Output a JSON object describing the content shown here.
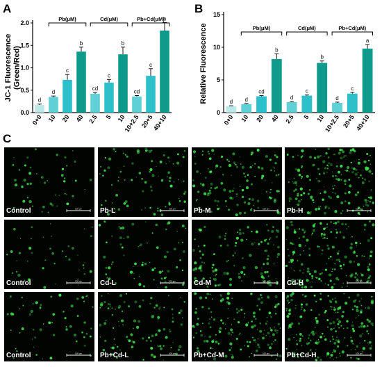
{
  "panels": {
    "a": "A",
    "b": "B",
    "c": "C"
  },
  "chart_data": [
    {
      "type": "bar",
      "panel": "A",
      "ylabel": "JC-1 Fluorescence (Green/Red)",
      "xlabel": "",
      "ylim": [
        0,
        2.0
      ],
      "yticks": [
        "0.0",
        "0.5",
        "1.0",
        "1.5",
        "2.0"
      ],
      "ytick_values": [
        0,
        0.5,
        1.0,
        1.5,
        2.0
      ],
      "categories": [
        "0+0",
        "10",
        "20",
        "40",
        "2.5",
        "5",
        "10",
        "10+2.5",
        "20+5",
        "40+10"
      ],
      "values": [
        0.17,
        0.35,
        0.73,
        1.36,
        0.42,
        0.67,
        1.3,
        0.36,
        0.82,
        1.83
      ],
      "errors": [
        0.02,
        0.02,
        0.12,
        0.1,
        0.03,
        0.07,
        0.16,
        0.02,
        0.16,
        0.18
      ],
      "significance": [
        "d",
        "d",
        "c",
        "b",
        "cd",
        "c",
        "b",
        "cd",
        "c",
        "a"
      ],
      "groups": [
        {
          "label": "Pb(μM)",
          "from": 1,
          "to": 3
        },
        {
          "label": "Cd(μM)",
          "from": 4,
          "to": 6
        },
        {
          "label": "Pb+Cd(μM)",
          "from": 7,
          "to": 9
        }
      ]
    },
    {
      "type": "bar",
      "panel": "B",
      "ylabel": "Relative Fluorescence",
      "xlabel": "",
      "ylim": [
        0,
        15
      ],
      "yticks": [
        "0",
        "5",
        "10",
        "15"
      ],
      "ytick_values": [
        0,
        5,
        10,
        15
      ],
      "categories": [
        "0+0",
        "10",
        "20",
        "40",
        "2.5",
        "5",
        "10",
        "10+2.5",
        "20+5",
        "40+10"
      ],
      "values": [
        1.0,
        1.3,
        2.5,
        8.2,
        1.6,
        2.6,
        7.6,
        1.5,
        2.9,
        9.8
      ],
      "errors": [
        0.05,
        0.1,
        0.1,
        0.8,
        0.1,
        0.1,
        0.3,
        0.1,
        0.2,
        0.6
      ],
      "significance": [
        "d",
        "d",
        "cd",
        "b",
        "d",
        "c",
        "b",
        "d",
        "c",
        "a"
      ],
      "groups": [
        {
          "label": "Pb(μM)",
          "from": 1,
          "to": 3
        },
        {
          "label": "Cd(μM)",
          "from": 4,
          "to": 6
        },
        {
          "label": "Pb+Cd(μM)",
          "from": 7,
          "to": 9
        }
      ]
    }
  ],
  "bar_colors": [
    "#bde8e8",
    "#5fd0d6",
    "#2dbfca",
    "#0f9a8c",
    "#5fd0d6",
    "#2dbfca",
    "#0f9a8c",
    "#5fd0d6",
    "#2dbfca",
    "#0f9a8c"
  ],
  "micrographs": {
    "rows": [
      {
        "labels": [
          "Control",
          "Pb-L",
          "Pb-M",
          "Pb-H"
        ],
        "density": [
          0.15,
          0.35,
          0.6,
          0.9
        ]
      },
      {
        "labels": [
          "Control",
          "Cd-L",
          "Cd-M",
          "Cd-H"
        ],
        "density": [
          0.12,
          0.3,
          0.5,
          0.85
        ]
      },
      {
        "labels": [
          "Control",
          "Pb+Cd-L",
          "Pb+Cd-M",
          "Pb+Cd-H"
        ],
        "density": [
          0.2,
          0.45,
          0.75,
          1.0
        ]
      }
    ],
    "scale_bar_text": "100 μm",
    "background_color": "#020402",
    "fluorescence_color": "#3ee04a"
  }
}
